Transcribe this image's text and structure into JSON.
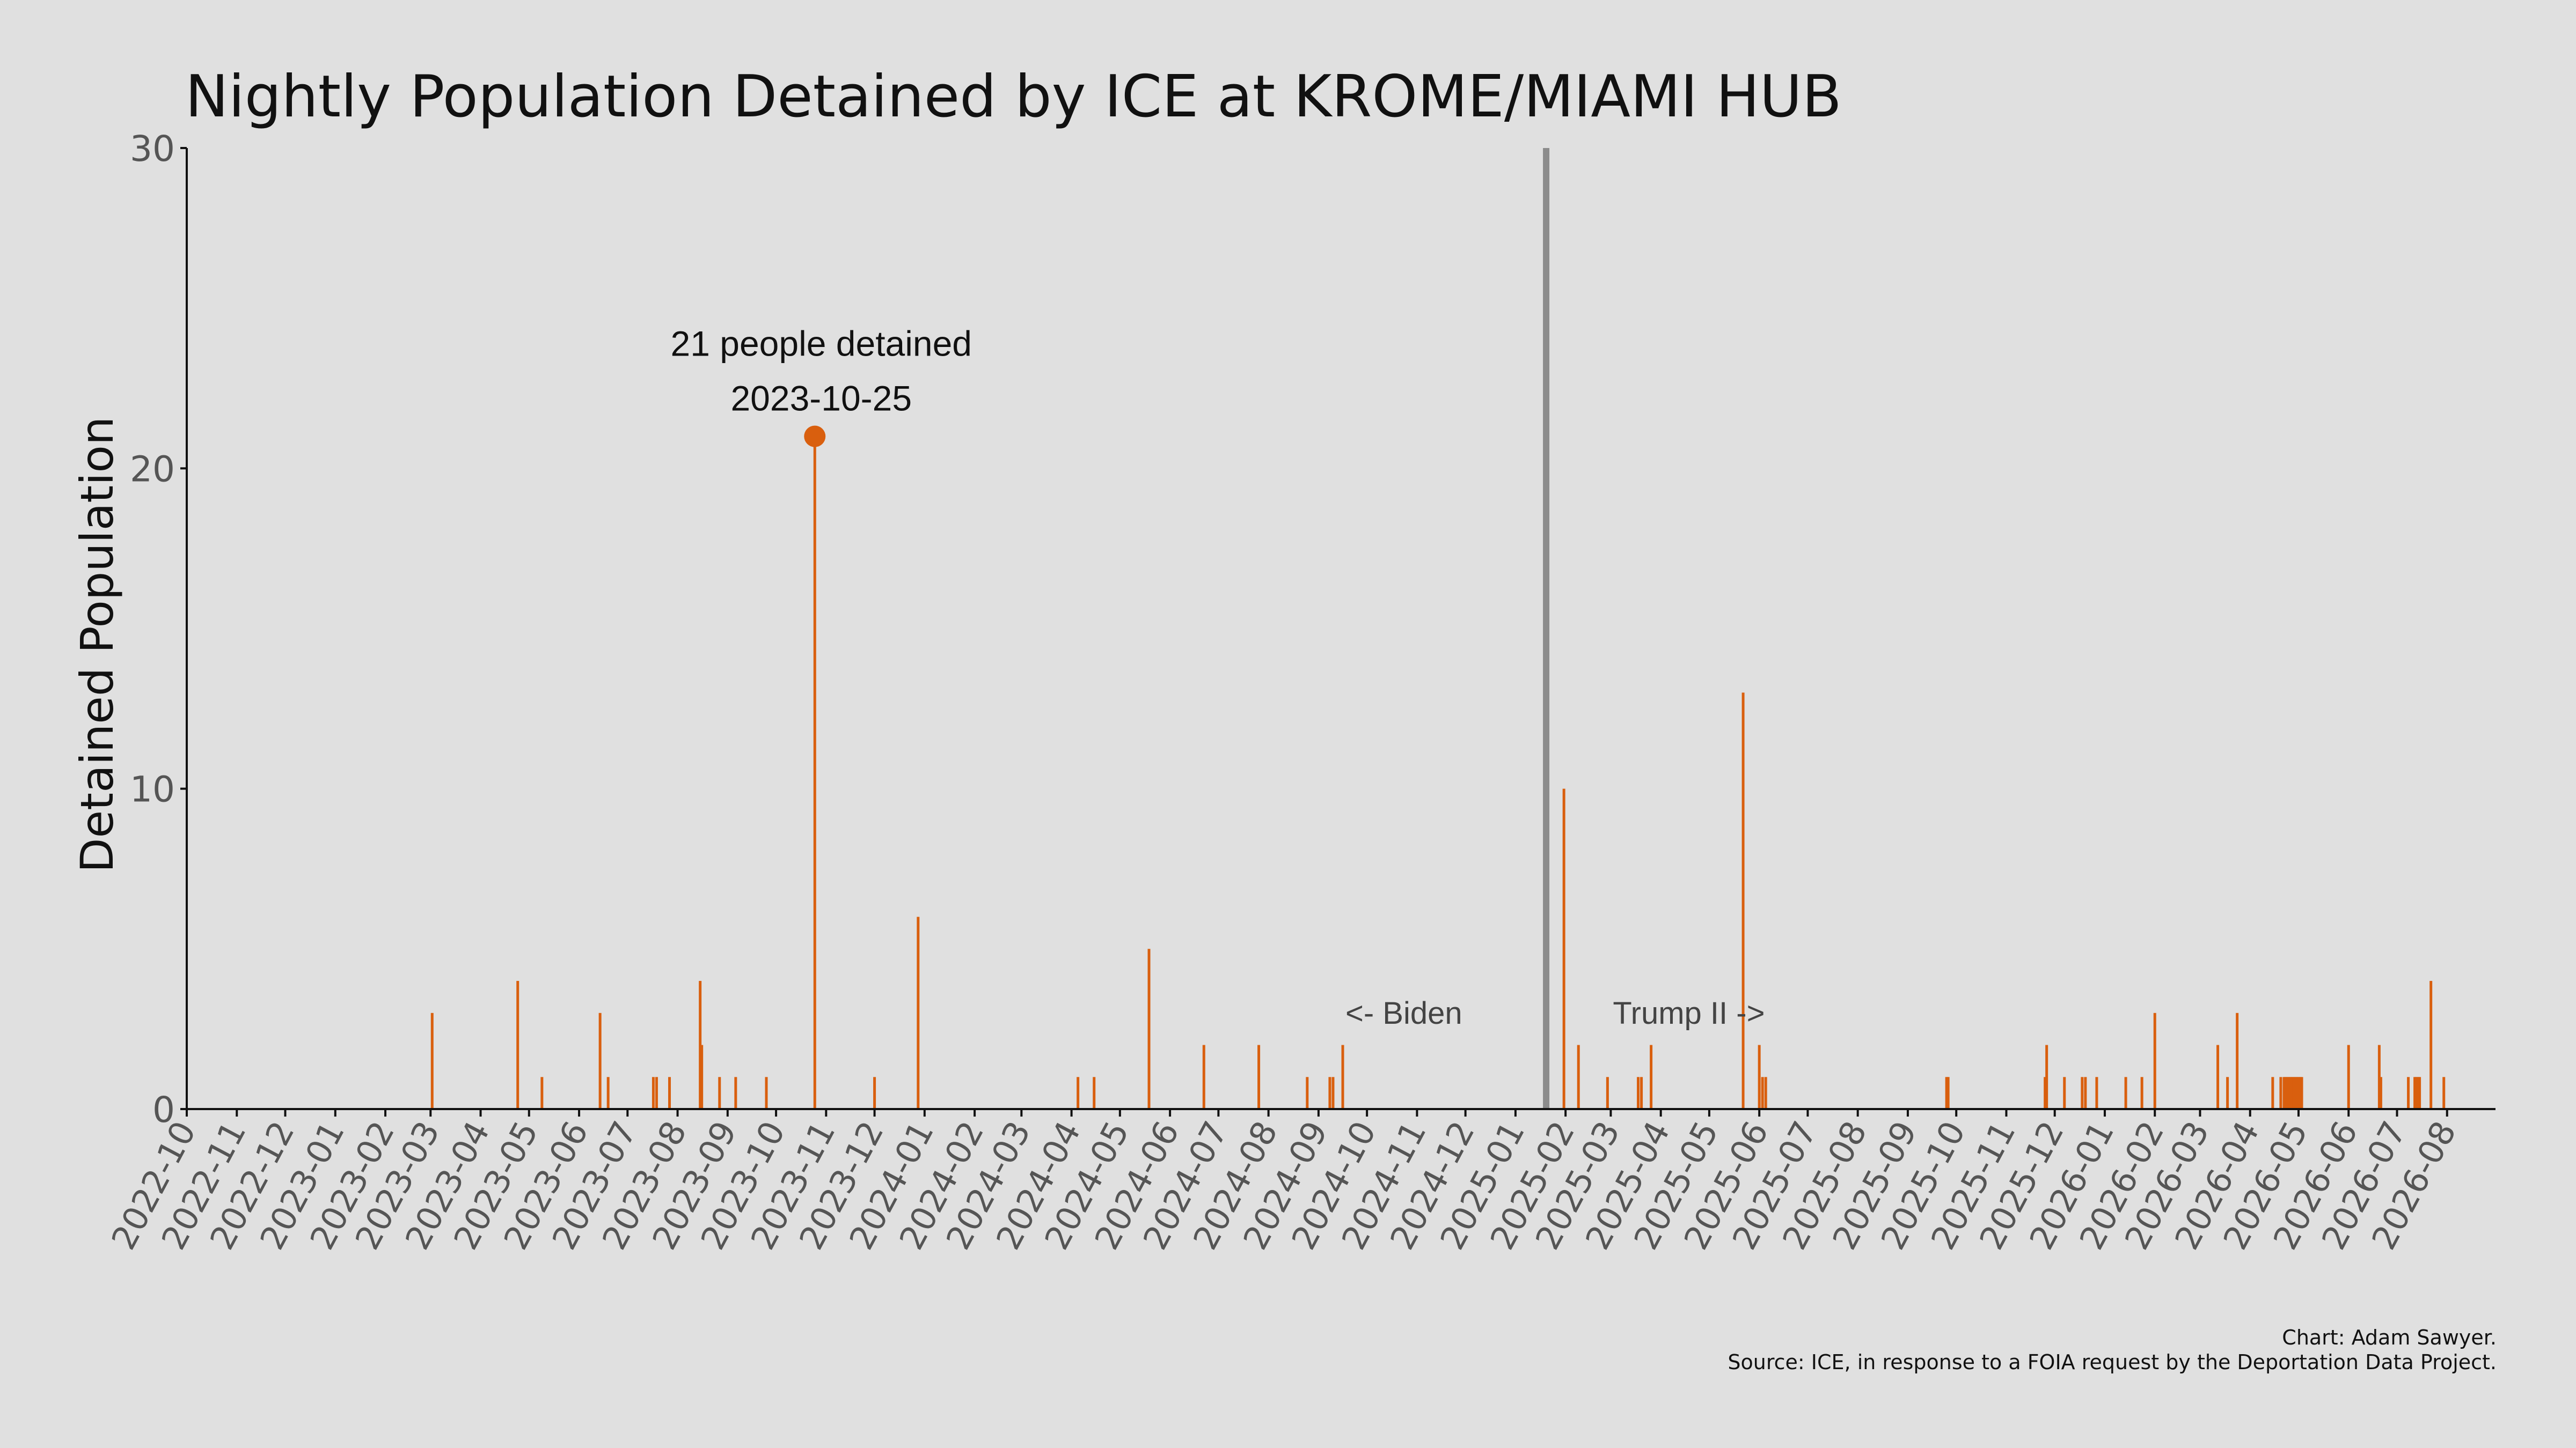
{
  "chart_data": {
    "type": "bar",
    "title": "Nightly Population Detained by ICE at KROME/MIAMI HUB",
    "xlabel": "",
    "ylabel": "Detained Population",
    "ylim": [
      0,
      30
    ],
    "yticks": [
      0,
      10,
      20,
      30
    ],
    "xlim": [
      "2022-10-01",
      "2026-08-31"
    ],
    "xtick_labels": [
      "2022-10",
      "2022-11",
      "2022-12",
      "2023-01",
      "2023-02",
      "2023-03",
      "2023-04",
      "2023-05",
      "2023-06",
      "2023-07",
      "2023-08",
      "2023-09",
      "2023-10",
      "2023-11",
      "2023-12",
      "2024-01",
      "2024-02",
      "2024-03",
      "2024-04",
      "2024-05",
      "2024-06",
      "2024-07",
      "2024-08",
      "2024-09",
      "2024-10",
      "2024-11",
      "2024-12",
      "2025-01",
      "2025-02",
      "2025-03",
      "2025-04",
      "2025-05",
      "2025-06",
      "2025-07",
      "2025-08",
      "2025-09",
      "2025-10",
      "2025-11",
      "2025-12",
      "2026-01",
      "2026-02",
      "2026-03",
      "2026-04",
      "2026-05",
      "2026-06",
      "2026-07",
      "2026-08"
    ],
    "grid": false,
    "series": [
      {
        "color": "#d95f0e",
        "points": [
          {
            "x": "2023-03-02",
            "y": 3
          },
          {
            "x": "2023-04-24",
            "y": 4
          },
          {
            "x": "2023-05-09",
            "y": 1
          },
          {
            "x": "2023-06-14",
            "y": 3
          },
          {
            "x": "2023-06-19",
            "y": 1
          },
          {
            "x": "2023-07-17",
            "y": 1
          },
          {
            "x": "2023-07-19",
            "y": 1
          },
          {
            "x": "2023-07-27",
            "y": 1
          },
          {
            "x": "2023-08-15",
            "y": 4
          },
          {
            "x": "2023-08-16",
            "y": 2
          },
          {
            "x": "2023-08-27",
            "y": 1
          },
          {
            "x": "2023-09-06",
            "y": 1
          },
          {
            "x": "2023-09-25",
            "y": 1
          },
          {
            "x": "2023-10-25",
            "y": 21
          },
          {
            "x": "2023-12-01",
            "y": 1
          },
          {
            "x": "2023-12-28",
            "y": 6
          },
          {
            "x": "2024-04-05",
            "y": 1
          },
          {
            "x": "2024-04-15",
            "y": 1
          },
          {
            "x": "2024-05-19",
            "y": 5
          },
          {
            "x": "2024-06-22",
            "y": 2
          },
          {
            "x": "2024-07-26",
            "y": 2
          },
          {
            "x": "2024-08-25",
            "y": 1
          },
          {
            "x": "2024-09-08",
            "y": 1
          },
          {
            "x": "2024-09-10",
            "y": 1
          },
          {
            "x": "2024-09-16",
            "y": 2
          },
          {
            "x": "2025-01-31",
            "y": 10
          },
          {
            "x": "2025-02-09",
            "y": 2
          },
          {
            "x": "2025-02-27",
            "y": 1
          },
          {
            "x": "2025-03-18",
            "y": 1
          },
          {
            "x": "2025-03-20",
            "y": 1
          },
          {
            "x": "2025-03-26",
            "y": 2
          },
          {
            "x": "2025-05-22",
            "y": 13
          },
          {
            "x": "2025-06-01",
            "y": 2
          },
          {
            "x": "2025-06-03",
            "y": 1
          },
          {
            "x": "2025-06-05",
            "y": 1
          },
          {
            "x": "2025-09-25",
            "y": 1
          },
          {
            "x": "2025-09-26",
            "y": 1
          },
          {
            "x": "2025-11-25",
            "y": 1
          },
          {
            "x": "2025-11-26",
            "y": 2
          },
          {
            "x": "2025-12-07",
            "y": 1
          },
          {
            "x": "2025-12-18",
            "y": 1
          },
          {
            "x": "2025-12-20",
            "y": 1
          },
          {
            "x": "2025-12-27",
            "y": 1
          },
          {
            "x": "2026-01-14",
            "y": 1
          },
          {
            "x": "2026-01-24",
            "y": 1
          },
          {
            "x": "2026-02-01",
            "y": 3
          },
          {
            "x": "2026-03-12",
            "y": 2
          },
          {
            "x": "2026-03-18",
            "y": 1
          },
          {
            "x": "2026-03-24",
            "y": 3
          },
          {
            "x": "2026-04-15",
            "y": 1
          },
          {
            "x": "2026-04-20",
            "y": 1
          },
          {
            "x": "2026-04-22",
            "y": 1
          },
          {
            "x": "2026-04-23",
            "y": 1
          },
          {
            "x": "2026-04-24",
            "y": 1
          },
          {
            "x": "2026-04-25",
            "y": 1
          },
          {
            "x": "2026-04-26",
            "y": 1
          },
          {
            "x": "2026-04-27",
            "y": 1
          },
          {
            "x": "2026-04-28",
            "y": 1
          },
          {
            "x": "2026-04-29",
            "y": 1
          },
          {
            "x": "2026-04-30",
            "y": 1
          },
          {
            "x": "2026-05-01",
            "y": 1
          },
          {
            "x": "2026-05-02",
            "y": 1
          },
          {
            "x": "2026-05-03",
            "y": 1
          },
          {
            "x": "2026-06-01",
            "y": 2
          },
          {
            "x": "2026-06-20",
            "y": 2
          },
          {
            "x": "2026-06-21",
            "y": 1
          },
          {
            "x": "2026-07-08",
            "y": 1
          },
          {
            "x": "2026-07-12",
            "y": 1
          },
          {
            "x": "2026-07-13",
            "y": 1
          },
          {
            "x": "2026-07-14",
            "y": 1
          },
          {
            "x": "2026-07-15",
            "y": 1
          },
          {
            "x": "2026-07-22",
            "y": 4
          },
          {
            "x": "2026-07-30",
            "y": 1
          }
        ]
      }
    ],
    "highlight": {
      "x": "2023-10-25",
      "y": 21,
      "label_line1": "21 people detained",
      "label_line2": "2023-10-25"
    },
    "divider": {
      "x": "2025-01-20",
      "color": "#8c8c8c"
    },
    "annotations": [
      {
        "text": "<- Biden",
        "x": "2024-09-16",
        "y": 3
      },
      {
        "text": "Trump II ->",
        "x": "2025-02-27",
        "y": 3
      }
    ]
  },
  "credits": {
    "line1": "Chart: Adam Sawyer.",
    "line2": "Source: ICE, in response to a FOIA request by the Deportation Data Project."
  }
}
